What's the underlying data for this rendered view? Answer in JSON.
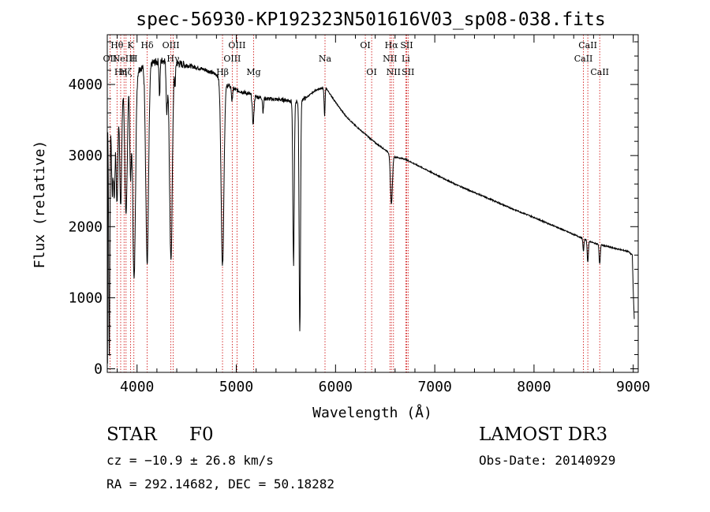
{
  "chart_data": {
    "type": "line",
    "title": "spec-56930-KP192323N501616V03_sp08-038.fits",
    "xlabel": "Wavelength (Å)",
    "ylabel": "Flux (relative)",
    "xlim": [
      3700,
      9050
    ],
    "ylim": [
      -50,
      4700
    ],
    "x_ticks": [
      4000,
      5000,
      6000,
      7000,
      8000,
      9000
    ],
    "y_ticks": [
      0,
      1000,
      2000,
      3000,
      4000
    ],
    "x_tick_labels": [
      "4000",
      "5000",
      "6000",
      "7000",
      "8000",
      "9000"
    ],
    "y_tick_labels": [
      "0",
      "1000",
      "2000",
      "3000",
      "4000"
    ],
    "line_color": "#000000",
    "marker_color": "#cc0000",
    "continuum": [
      {
        "x": 3700,
        "y": 3500
      },
      {
        "x": 3750,
        "y": 3700
      },
      {
        "x": 3800,
        "y": 3850
      },
      {
        "x": 3900,
        "y": 4050
      },
      {
        "x": 4000,
        "y": 4200
      },
      {
        "x": 4100,
        "y": 4280
      },
      {
        "x": 4200,
        "y": 4320
      },
      {
        "x": 4300,
        "y": 4350
      },
      {
        "x": 4400,
        "y": 4300
      },
      {
        "x": 4500,
        "y": 4270
      },
      {
        "x": 4600,
        "y": 4240
      },
      {
        "x": 4700,
        "y": 4200
      },
      {
        "x": 4800,
        "y": 4140
      },
      {
        "x": 4900,
        "y": 4000
      },
      {
        "x": 5000,
        "y": 3920
      },
      {
        "x": 5100,
        "y": 3880
      },
      {
        "x": 5200,
        "y": 3830
      },
      {
        "x": 5300,
        "y": 3800
      },
      {
        "x": 5400,
        "y": 3790
      },
      {
        "x": 5500,
        "y": 3780
      },
      {
        "x": 5600,
        "y": 3760
      },
      {
        "x": 5700,
        "y": 3810
      },
      {
        "x": 5800,
        "y": 3920
      },
      {
        "x": 5900,
        "y": 3960
      },
      {
        "x": 6000,
        "y": 3750
      },
      {
        "x": 6100,
        "y": 3560
      },
      {
        "x": 6200,
        "y": 3420
      },
      {
        "x": 6300,
        "y": 3300
      },
      {
        "x": 6400,
        "y": 3180
      },
      {
        "x": 6500,
        "y": 3080
      },
      {
        "x": 6600,
        "y": 2980
      },
      {
        "x": 6700,
        "y": 2950
      },
      {
        "x": 6800,
        "y": 2880
      },
      {
        "x": 7000,
        "y": 2740
      },
      {
        "x": 7200,
        "y": 2600
      },
      {
        "x": 7400,
        "y": 2480
      },
      {
        "x": 7600,
        "y": 2360
      },
      {
        "x": 7800,
        "y": 2240
      },
      {
        "x": 8000,
        "y": 2130
      },
      {
        "x": 8200,
        "y": 2010
      },
      {
        "x": 8400,
        "y": 1890
      },
      {
        "x": 8600,
        "y": 1770
      },
      {
        "x": 8800,
        "y": 1700
      },
      {
        "x": 8950,
        "y": 1650
      },
      {
        "x": 8990,
        "y": 1600
      },
      {
        "x": 9000,
        "y": 1100
      },
      {
        "x": 9010,
        "y": 700
      }
    ],
    "absorption": [
      {
        "x": 3720,
        "depth": 3400,
        "width": 6
      },
      {
        "x": 3750,
        "depth": 1200,
        "width": 8
      },
      {
        "x": 3771,
        "depth": 1300,
        "width": 8
      },
      {
        "x": 3798,
        "depth": 1500,
        "width": 9
      },
      {
        "x": 3835,
        "depth": 1600,
        "width": 10
      },
      {
        "x": 3889,
        "depth": 1900,
        "width": 12
      },
      {
        "x": 3934,
        "depth": 1300,
        "width": 8
      },
      {
        "x": 3970,
        "depth": 2900,
        "width": 14
      },
      {
        "x": 4102,
        "depth": 2800,
        "width": 14
      },
      {
        "x": 4227,
        "depth": 500,
        "width": 5
      },
      {
        "x": 4300,
        "depth": 700,
        "width": 7
      },
      {
        "x": 4341,
        "depth": 2800,
        "width": 14
      },
      {
        "x": 4383,
        "depth": 300,
        "width": 5
      },
      {
        "x": 4861,
        "depth": 2600,
        "width": 14
      },
      {
        "x": 4957,
        "depth": 200,
        "width": 5
      },
      {
        "x": 5170,
        "depth": 400,
        "width": 8
      },
      {
        "x": 5270,
        "depth": 200,
        "width": 5
      },
      {
        "x": 5577,
        "depth": 2300,
        "width": 7
      },
      {
        "x": 5640,
        "depth": 3250,
        "width": 7
      },
      {
        "x": 5890,
        "depth": 400,
        "width": 5
      },
      {
        "x": 6563,
        "depth": 700,
        "width": 10
      },
      {
        "x": 8498,
        "depth": 180,
        "width": 5
      },
      {
        "x": 8542,
        "depth": 300,
        "width": 6
      },
      {
        "x": 8662,
        "depth": 270,
        "width": 6
      }
    ],
    "line_markers": [
      {
        "x": 3727,
        "label": "OII",
        "row": 1
      },
      {
        "x": 3798,
        "label": "Hθ",
        "row": 0
      },
      {
        "x": 3835,
        "label": "Hη",
        "row": 2
      },
      {
        "x": 3869,
        "label": "NeIII",
        "row": 1
      },
      {
        "x": 3889,
        "label": "Hζ",
        "row": 2
      },
      {
        "x": 3934,
        "label": "K",
        "row": 0
      },
      {
        "x": 3968,
        "label": "H",
        "row": 1
      },
      {
        "x": 4102,
        "label": "Hδ",
        "row": 0
      },
      {
        "x": 4341,
        "label": "OIII",
        "row": 0
      },
      {
        "x": 4363,
        "label": "Hγ",
        "row": 1
      },
      {
        "x": 4861,
        "label": "Hβ",
        "row": 2
      },
      {
        "x": 4959,
        "label": "OIII",
        "row": 1
      },
      {
        "x": 5007,
        "label": "OIII",
        "row": 0
      },
      {
        "x": 5175,
        "label": "Mg",
        "row": 2
      },
      {
        "x": 5894,
        "label": "Na",
        "row": 1
      },
      {
        "x": 6300,
        "label": "OI",
        "row": 0
      },
      {
        "x": 6364,
        "label": "OI",
        "row": 2
      },
      {
        "x": 6548,
        "label": "NII",
        "row": 1
      },
      {
        "x": 6563,
        "label": "Hα",
        "row": 0
      },
      {
        "x": 6584,
        "label": "NII",
        "row": 2
      },
      {
        "x": 6708,
        "label": "Li",
        "row": 1
      },
      {
        "x": 6717,
        "label": "SII",
        "row": 0
      },
      {
        "x": 6731,
        "label": "SII",
        "row": 2
      },
      {
        "x": 8498,
        "label": "CaII",
        "row": 1
      },
      {
        "x": 8542,
        "label": "CaII",
        "row": 0
      },
      {
        "x": 8662,
        "label": "CaII",
        "row": 2
      }
    ]
  },
  "info": {
    "object_class": "STAR",
    "subclass": "F0",
    "survey": "LAMOST DR3",
    "velocity": "cz = −10.9 ± 26.8 km/s",
    "obs_date": "Obs-Date: 20140929",
    "coordinates": "RA = 292.14682, DEC =  50.18282"
  }
}
